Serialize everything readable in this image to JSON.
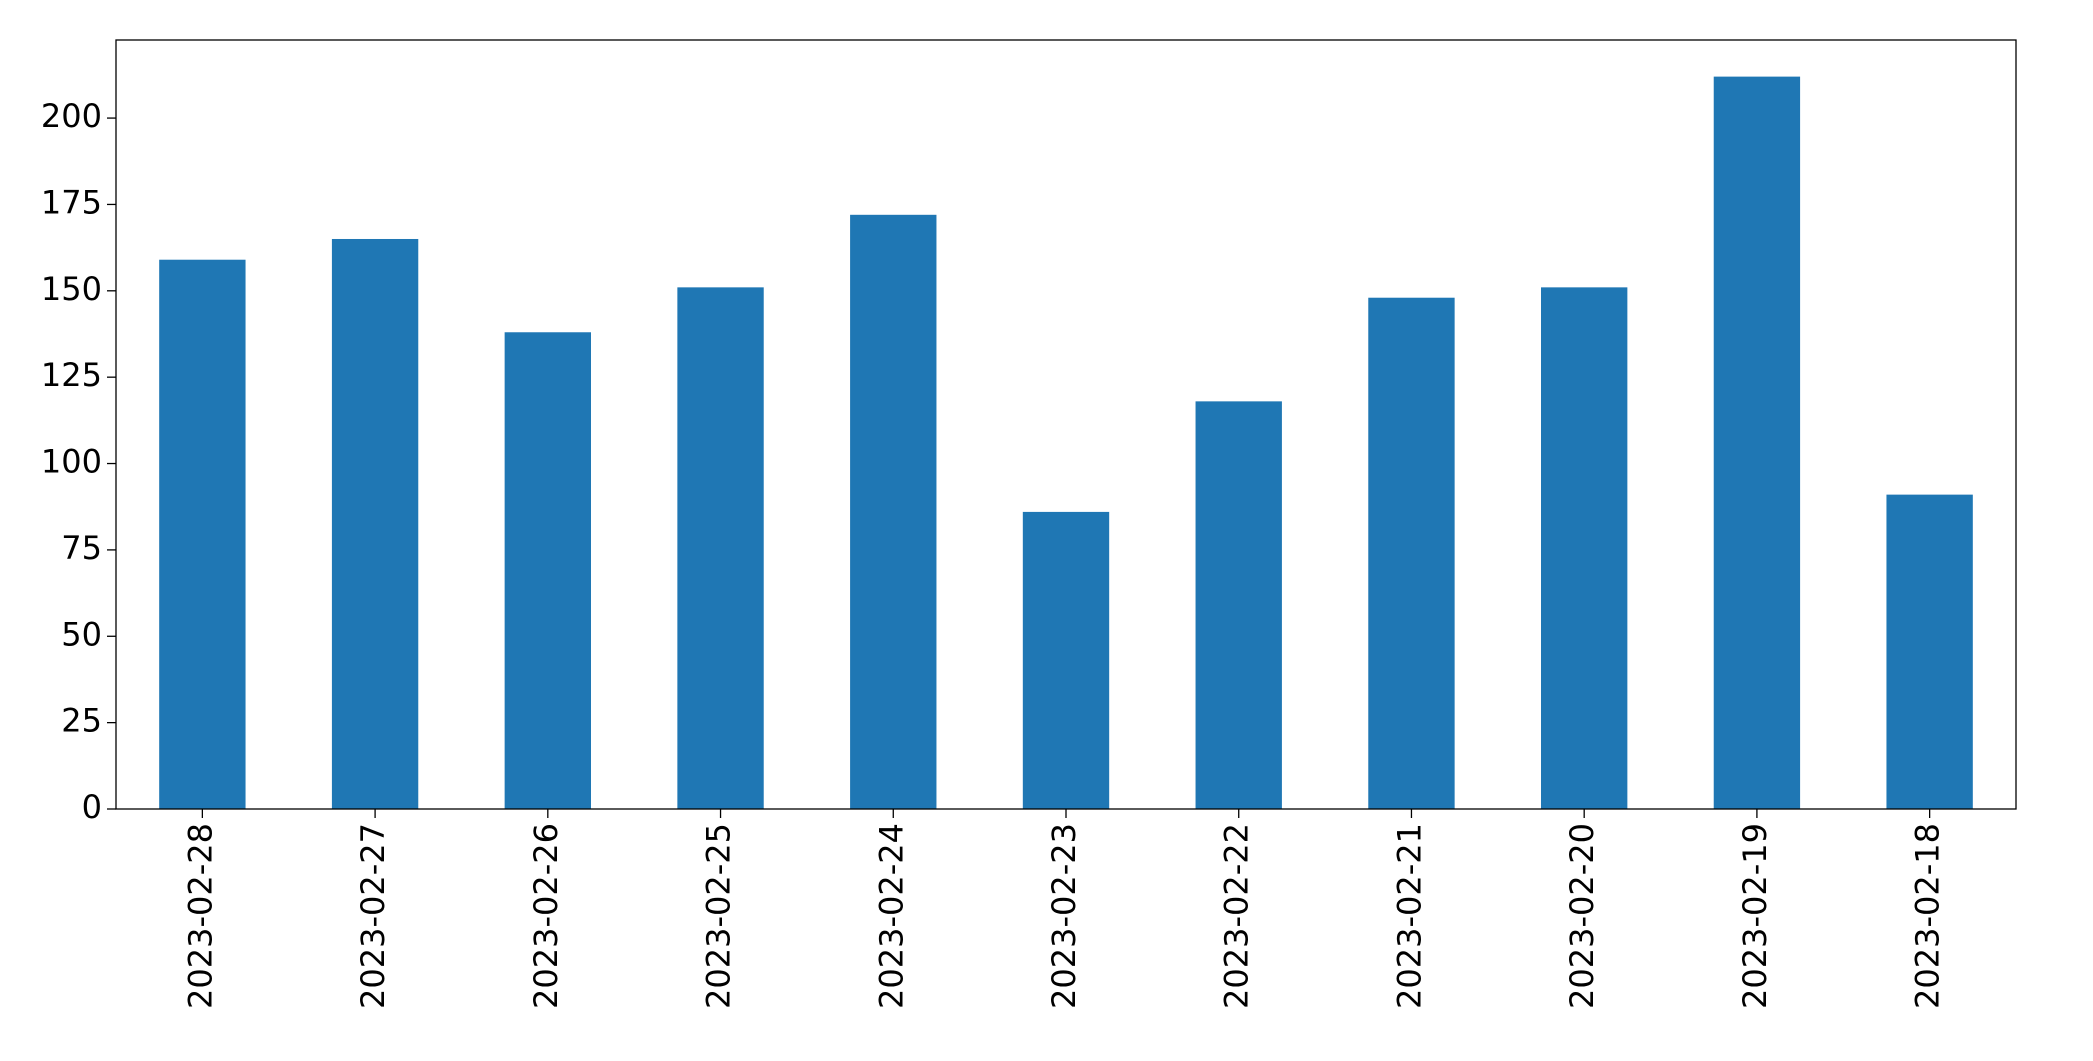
{
  "chart_data": {
    "type": "bar",
    "categories": [
      "2023-02-28",
      "2023-02-27",
      "2023-02-26",
      "2023-02-25",
      "2023-02-24",
      "2023-02-23",
      "2023-02-22",
      "2023-02-21",
      "2023-02-20",
      "2023-02-19",
      "2023-02-18"
    ],
    "values": [
      159,
      165,
      138,
      151,
      172,
      86,
      118,
      148,
      151,
      212,
      91
    ],
    "color": "#1f77b4",
    "ylim": [
      0,
      222.6
    ],
    "yticks": [
      0,
      25,
      50,
      75,
      100,
      125,
      150,
      175,
      200
    ],
    "grid": false
  }
}
